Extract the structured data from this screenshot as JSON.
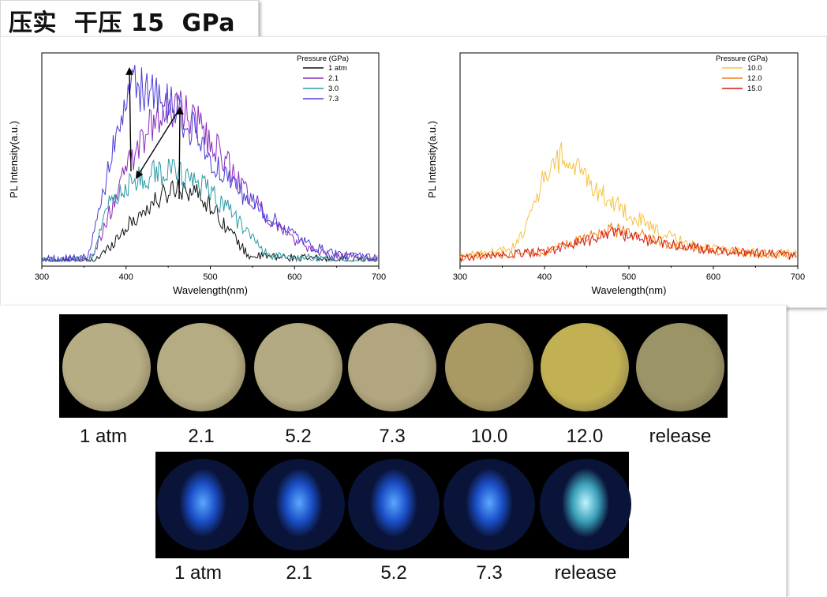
{
  "header": {
    "title": "压实  干压 15  GPa"
  },
  "chart_data": [
    {
      "type": "line",
      "xlabel": "Wavelength(nm)",
      "ylabel": "PL Intensity(a.u.)",
      "xlim": [
        300,
        700
      ],
      "xticks": [
        300,
        400,
        500,
        600,
        700
      ],
      "legend_title": "Pressure (GPa)",
      "legend_position": "top-right",
      "annotations": [
        "arrow 1 atm → 7.3 near 410 nm",
        "arrow 2.1 → 3.0 near 470 nm"
      ],
      "series": [
        {
          "name": "1 atm",
          "color": "#111111",
          "peak_x": 465,
          "peak_y": 0.4,
          "onset_x": 375,
          "end_x": 545,
          "noise": 0.05,
          "x": [
            300,
            360,
            375,
            400,
            430,
            460,
            480,
            500,
            530,
            545,
            700
          ],
          "y": [
            0.0,
            0.0,
            0.05,
            0.18,
            0.3,
            0.4,
            0.37,
            0.3,
            0.12,
            0.03,
            0.0
          ]
        },
        {
          "name": "2.1",
          "color": "#8a2bbd",
          "peak_x": 460,
          "peak_y": 0.82,
          "onset_x": 365,
          "end_x": 640,
          "noise": 0.06,
          "x": [
            300,
            360,
            380,
            400,
            430,
            460,
            490,
            530,
            570,
            610,
            640,
            700
          ],
          "y": [
            0.01,
            0.02,
            0.25,
            0.48,
            0.72,
            0.82,
            0.7,
            0.45,
            0.22,
            0.08,
            0.03,
            0.02
          ]
        },
        {
          "name": "3.0",
          "color": "#2f9aa5",
          "peak_x": 455,
          "peak_y": 0.48,
          "onset_x": 365,
          "end_x": 570,
          "noise": 0.05,
          "x": [
            300,
            360,
            380,
            400,
            430,
            460,
            490,
            520,
            550,
            570,
            700
          ],
          "y": [
            0.0,
            0.02,
            0.3,
            0.4,
            0.46,
            0.48,
            0.4,
            0.28,
            0.12,
            0.03,
            0.0
          ]
        },
        {
          "name": "7.3",
          "color": "#4b3fd6",
          "peak_x": 410,
          "peak_y": 0.93,
          "onset_x": 360,
          "end_x": 660,
          "noise": 0.07,
          "x": [
            300,
            355,
            375,
            395,
            410,
            440,
            470,
            500,
            540,
            580,
            620,
            660,
            700
          ],
          "y": [
            0.01,
            0.02,
            0.4,
            0.78,
            0.93,
            0.86,
            0.75,
            0.55,
            0.35,
            0.2,
            0.08,
            0.03,
            0.02
          ]
        }
      ]
    },
    {
      "type": "line",
      "xlabel": "Wavelength(nm)",
      "ylabel": "PL Intensity(a.u.)",
      "xlim": [
        300,
        700
      ],
      "xticks": [
        300,
        400,
        500,
        600,
        700
      ],
      "legend_title": "Pressure (GPa)",
      "legend_position": "top-right",
      "series": [
        {
          "name": "10.0",
          "color": "#f5c242",
          "x": [
            300,
            360,
            380,
            400,
            420,
            440,
            470,
            500,
            540,
            580,
            620,
            700
          ],
          "y": [
            0.03,
            0.06,
            0.2,
            0.45,
            0.55,
            0.48,
            0.35,
            0.25,
            0.14,
            0.08,
            0.05,
            0.04
          ]
        },
        {
          "name": "12.0",
          "color": "#ef7d1a",
          "x": [
            300,
            400,
            450,
            480,
            510,
            560,
            620,
            700
          ],
          "y": [
            0.02,
            0.05,
            0.12,
            0.17,
            0.14,
            0.08,
            0.05,
            0.03
          ]
        },
        {
          "name": "15.0",
          "color": "#d11a12",
          "x": [
            300,
            400,
            460,
            480,
            520,
            600,
            700
          ],
          "y": [
            0.02,
            0.05,
            0.12,
            0.16,
            0.11,
            0.06,
            0.03
          ]
        }
      ]
    }
  ],
  "optical_images": {
    "captions": [
      "1 atm",
      "2.1",
      "5.2",
      "7.3",
      "10.0",
      "12.0",
      "release"
    ],
    "colors": [
      "#b7ad85",
      "#b6ac84",
      "#b3a982",
      "#b1a67f",
      "#a89a62",
      "#c2b152",
      "#9b9467"
    ]
  },
  "pl_images": {
    "captions": [
      "1 atm",
      "2.1",
      "5.2",
      "7.3",
      "release"
    ]
  }
}
